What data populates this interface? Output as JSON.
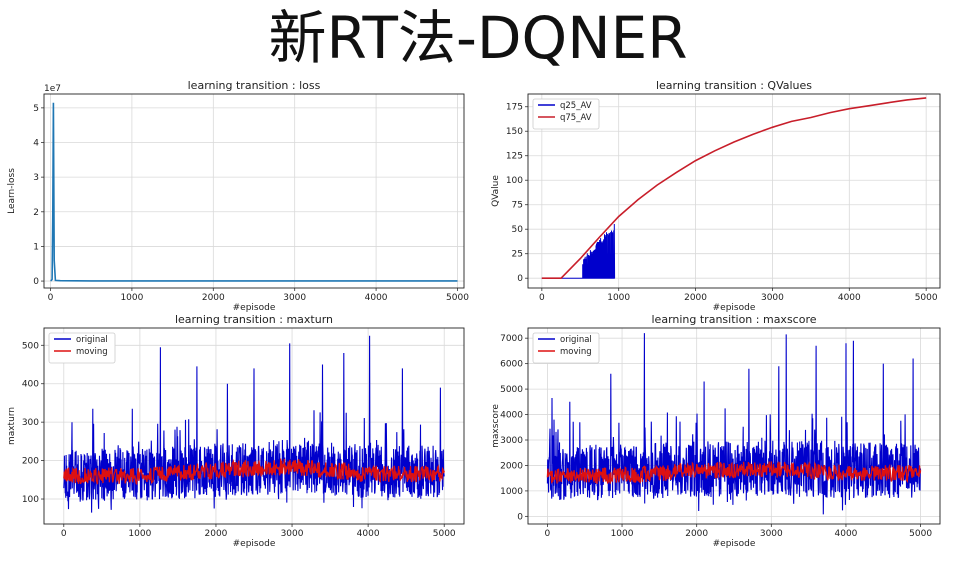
{
  "page_title": "新RT法-DQNER",
  "colors": {
    "blue": "#0000cc",
    "red": "#dd1111",
    "teal": "#1f77b4",
    "crimson": "#c81e2a",
    "grid": "#d9d9d9"
  },
  "chart_data": [
    {
      "id": "loss",
      "type": "line",
      "title": "learning transition : loss",
      "xlabel": "#episode",
      "ylabel": "Learn-loss",
      "scale_note": "1e7",
      "xlim": [
        -80,
        5080
      ],
      "ylim": [
        -0.2,
        5.4
      ],
      "xticks": [
        0,
        1000,
        2000,
        3000,
        4000,
        5000
      ],
      "yticks": [
        0,
        1,
        2,
        3,
        4,
        5
      ],
      "grid": true,
      "series": [
        {
          "name": "",
          "color": "#1f77b4",
          "x": [
            0,
            10,
            20,
            28,
            35,
            45,
            60,
            120,
            500,
            1000,
            2000,
            3000,
            4000,
            5000
          ],
          "y": [
            0.01,
            0.02,
            0.05,
            2.0,
            5.15,
            0.6,
            0.02,
            0.01,
            0.005,
            0.005,
            0.005,
            0.005,
            0.005,
            0.005
          ]
        }
      ]
    },
    {
      "id": "qvalues",
      "type": "line",
      "title": "learning transition : QValues",
      "xlabel": "#episode",
      "ylabel": "QValue",
      "xlim": [
        -180,
        5180
      ],
      "ylim": [
        -10,
        188
      ],
      "xticks": [
        0,
        1000,
        2000,
        3000,
        4000,
        5000
      ],
      "yticks": [
        0,
        25,
        50,
        75,
        100,
        125,
        150,
        175
      ],
      "grid": true,
      "legend": "top-left",
      "series": [
        {
          "name": "q25_AV",
          "color": "#0000cc",
          "spikes_x_range": [
            530,
            950
          ],
          "spike_count": 42
        },
        {
          "name": "q75_AV",
          "color": "#c81e2a",
          "x": [
            0,
            250,
            500,
            750,
            1000,
            1250,
            1500,
            1750,
            2000,
            2250,
            2500,
            2750,
            3000,
            3250,
            3500,
            3750,
            4000,
            4250,
            4500,
            4750,
            5000
          ],
          "y": [
            0,
            0,
            20,
            42,
            63,
            80,
            95,
            108,
            120,
            130,
            139,
            147,
            154,
            160,
            164,
            169,
            173,
            176,
            179,
            182,
            184
          ]
        }
      ]
    },
    {
      "id": "maxturn",
      "type": "line",
      "title": "learning transition : maxturn",
      "xlabel": "#episode",
      "ylabel": "maxturn",
      "xlim": [
        -260,
        5260
      ],
      "ylim": [
        35,
        545
      ],
      "xticks": [
        0,
        1000,
        2000,
        3000,
        4000,
        5000
      ],
      "yticks": [
        100,
        200,
        300,
        400,
        500
      ],
      "grid": true,
      "legend": "top-left",
      "series": [
        {
          "name": "original",
          "color": "#0000cc",
          "band_base": [
            [
              0,
              160
            ],
            [
              1000,
              165
            ],
            [
              2000,
              175
            ],
            [
              3000,
              185
            ],
            [
              4000,
              172
            ],
            [
              5000,
              170
            ]
          ],
          "band_spread": 70,
          "peaks": [
            [
              380,
              335
            ],
            [
              900,
              335
            ],
            [
              1270,
              495
            ],
            [
              1750,
              445
            ],
            [
              2150,
              400
            ],
            [
              2500,
              440
            ],
            [
              2970,
              505
            ],
            [
              3400,
              450
            ],
            [
              3680,
              480
            ],
            [
              4020,
              525
            ],
            [
              4450,
              440
            ],
            [
              4950,
              390
            ]
          ]
        },
        {
          "name": "moving",
          "color": "#dd1111",
          "band_base": [
            [
              0,
              160
            ],
            [
              1000,
              160
            ],
            [
              2000,
              175
            ],
            [
              3000,
              185
            ],
            [
              4000,
              165
            ],
            [
              5000,
              165
            ]
          ],
          "band_spread": 22
        }
      ]
    },
    {
      "id": "maxscore",
      "type": "line",
      "title": "learning transition : maxscore",
      "xlabel": "#episode",
      "ylabel": "maxscore",
      "xlim": [
        -260,
        5260
      ],
      "ylim": [
        -300,
        7400
      ],
      "xticks": [
        0,
        1000,
        2000,
        3000,
        4000,
        5000
      ],
      "yticks": [
        0,
        1000,
        2000,
        3000,
        4000,
        5000,
        6000,
        7000
      ],
      "grid": true,
      "legend": "top-left",
      "series": [
        {
          "name": "original",
          "color": "#0000cc",
          "band_base": [
            [
              0,
              1700
            ],
            [
              1000,
              1750
            ],
            [
              2000,
              1850
            ],
            [
              3000,
              1900
            ],
            [
              4000,
              1800
            ],
            [
              5000,
              1800
            ]
          ],
          "band_spread": 1100,
          "peaks": [
            [
              60,
              4650
            ],
            [
              300,
              4500
            ],
            [
              850,
              5600
            ],
            [
              1300,
              7200
            ],
            [
              2100,
              5300
            ],
            [
              2700,
              5800
            ],
            [
              3100,
              5900
            ],
            [
              3200,
              7150
            ],
            [
              3600,
              6700
            ],
            [
              4000,
              6800
            ],
            [
              4100,
              6900
            ],
            [
              4500,
              6000
            ],
            [
              4900,
              6200
            ]
          ]
        },
        {
          "name": "moving",
          "color": "#dd1111",
          "band_base": [
            [
              0,
              1600
            ],
            [
              1000,
              1600
            ],
            [
              2000,
              1800
            ],
            [
              3000,
              1850
            ],
            [
              4000,
              1700
            ],
            [
              5000,
              1700
            ]
          ],
          "band_spread": 320
        }
      ]
    }
  ]
}
